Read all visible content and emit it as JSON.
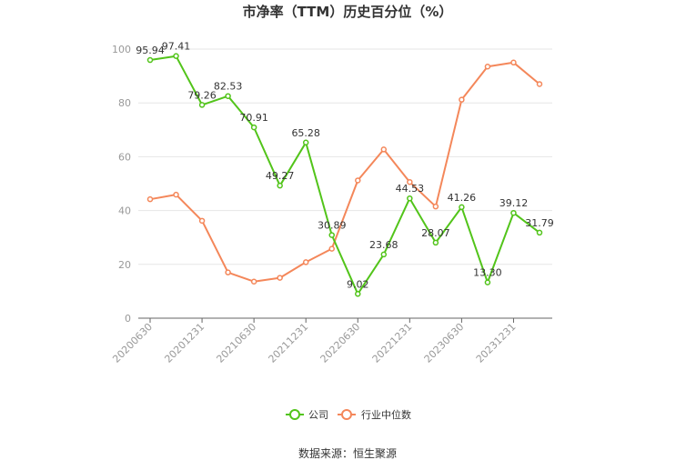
{
  "chart_data": {
    "type": "line",
    "title": "市净率（TTM）历史百分位（%）",
    "categories": [
      "20200630",
      "20201231",
      "20210630",
      "20211231",
      "20220630",
      "20221231",
      "20230630",
      "20231231"
    ],
    "x": [
      "20200630",
      "20200930",
      "20201231",
      "20210331",
      "20210630",
      "20210930",
      "20211231",
      "20220331",
      "20220630",
      "20220930",
      "20221231",
      "20230331",
      "20230630",
      "20230930",
      "20231231",
      "20240331"
    ],
    "ylim": [
      0,
      100
    ],
    "yticks": [
      0,
      20,
      40,
      60,
      80,
      100
    ],
    "grid": true,
    "legend_position": "bottom-center",
    "series": [
      {
        "name": "公司",
        "color": "#52c41a",
        "labeled": true,
        "values": [
          95.94,
          97.41,
          79.26,
          82.53,
          70.91,
          49.27,
          65.28,
          30.89,
          9.02,
          23.68,
          44.53,
          28.07,
          41.26,
          13.3,
          39.12,
          31.79
        ],
        "labels": [
          "95.94",
          "97.41",
          "79.26",
          "82.53",
          "70.91",
          "49.27",
          "65.28",
          "30.89",
          "9.02",
          "23.68",
          "44.53",
          "28.07",
          "41.26",
          "13.30",
          "39.12",
          "31.79"
        ]
      },
      {
        "name": "行业中位数",
        "color": "#f4875a",
        "labeled": false,
        "values": [
          44.2,
          45.9,
          36.2,
          17.0,
          13.6,
          15.0,
          20.8,
          25.8,
          51.2,
          62.7,
          50.6,
          41.5,
          81.2,
          93.5,
          95.0,
          87.0
        ]
      }
    ]
  },
  "source": "数据来源：恒生聚源"
}
